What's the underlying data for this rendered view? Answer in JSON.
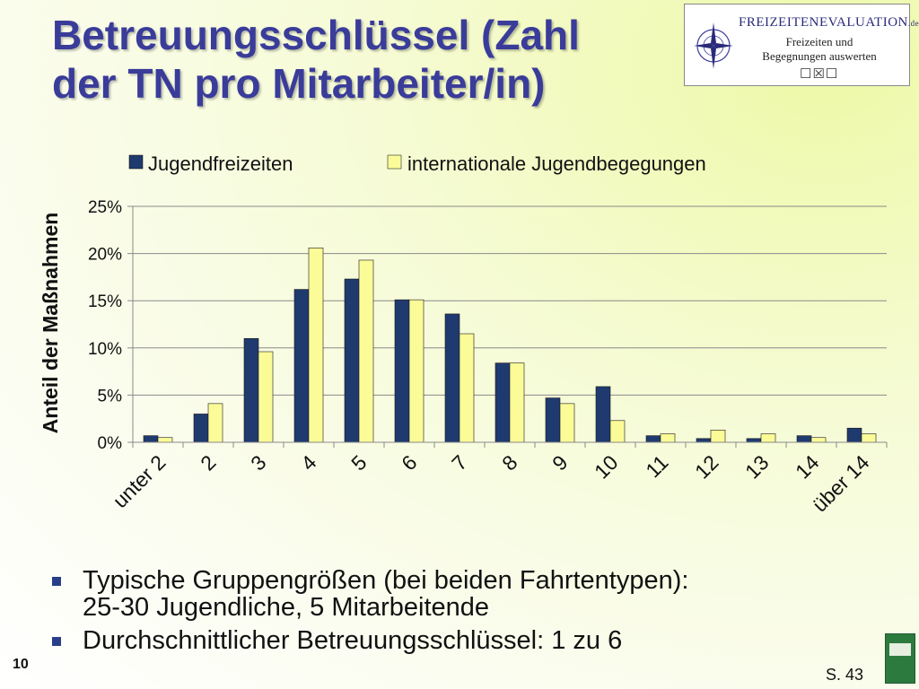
{
  "slide": {
    "title_lines": [
      "Betreuungsschlüssel (Zahl",
      "der TN pro Mitarbeiter/in)"
    ],
    "page_number": "10",
    "source_ref": "S. 43"
  },
  "logo": {
    "title": "FREIZEITENEVALUATION",
    "title_suffix": ".de",
    "subtitle_line1": "Freizeiten und",
    "subtitle_line2": "Begegnungen auswerten",
    "checkboxes": "☐☒☐",
    "icon": "compass-rose-icon"
  },
  "bullets": [
    {
      "lines": [
        "Typische Gruppengrößen (bei beiden Fahrtentypen):",
        "25-30 Jugendliche, 5 Mitarbeitende"
      ]
    },
    {
      "lines": [
        "Durchschnittlicher Betreuungsschlüssel: 1 zu 6"
      ]
    }
  ],
  "chart_data": {
    "type": "bar",
    "ylabel": "Anteil der Maßnahmen",
    "ylim": [
      0,
      25
    ],
    "yticks": [
      0,
      5,
      10,
      15,
      20,
      25
    ],
    "ytick_format": "percent",
    "grid": true,
    "legend_position": "top",
    "categories": [
      "unter 2",
      "2",
      "3",
      "4",
      "5",
      "6",
      "7",
      "8",
      "9",
      "10",
      "11",
      "12",
      "13",
      "14",
      "über 14"
    ],
    "series": [
      {
        "name": "Jugendfreizeiten",
        "color": "#1f3a6e",
        "values": [
          0.7,
          3.0,
          11.0,
          16.2,
          17.3,
          15.1,
          13.6,
          8.4,
          4.7,
          5.9,
          0.7,
          0.4,
          0.4,
          0.7,
          1.5
        ]
      },
      {
        "name": "internationale Jugendbegegungen",
        "color": "#fbfb98",
        "values": [
          0.5,
          4.1,
          9.6,
          20.6,
          19.3,
          15.1,
          11.5,
          8.4,
          4.1,
          2.3,
          0.9,
          1.3,
          0.9,
          0.5,
          0.9
        ]
      }
    ]
  }
}
